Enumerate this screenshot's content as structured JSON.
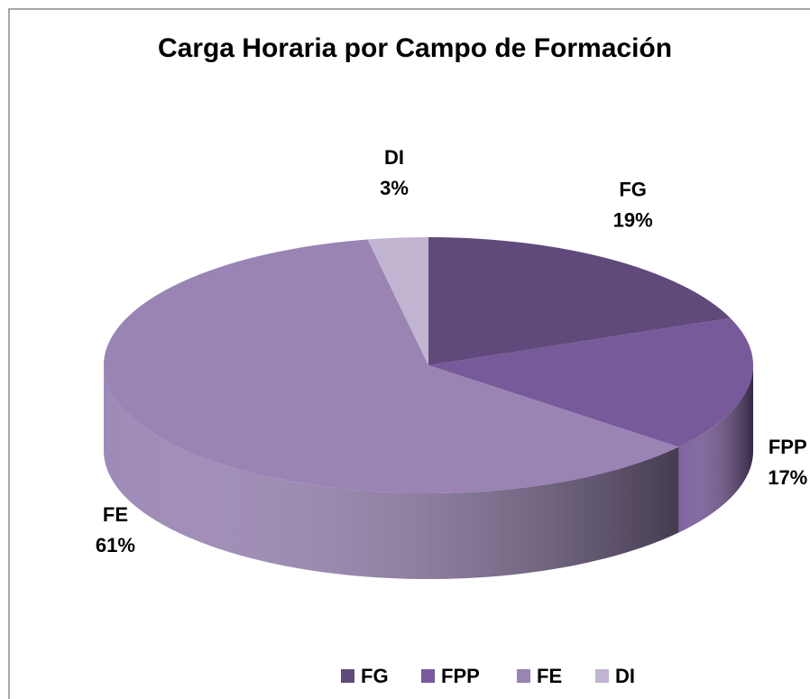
{
  "chart_data": {
    "type": "pie",
    "title": "Carga Horaria por Campo de Formación",
    "categories": [
      "FG",
      "FPP",
      "FE",
      "DI"
    ],
    "values": [
      19,
      17,
      61,
      3
    ],
    "value_labels": [
      "19%",
      "17%",
      "61%",
      "3%"
    ],
    "colors": [
      "#604a7b",
      "#775a99",
      "#9984b4",
      "#c0b4d0"
    ],
    "legend": "bottom"
  }
}
